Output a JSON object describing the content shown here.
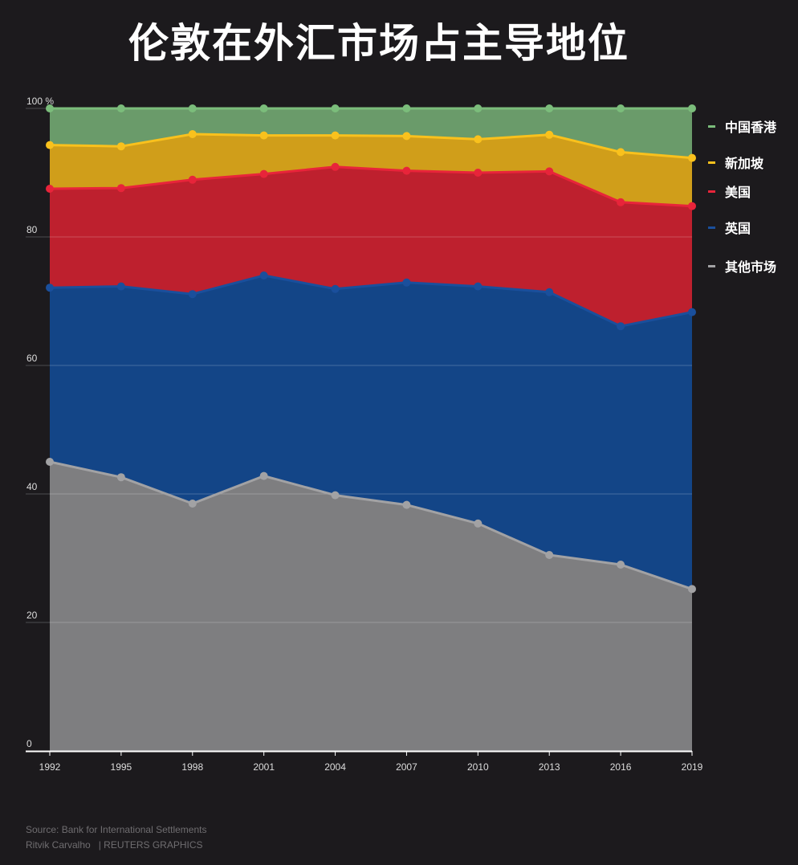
{
  "title": "伦敦在外汇市场占主导地位",
  "chart_data": {
    "type": "area",
    "stacked": true,
    "x": [
      1992,
      1995,
      1998,
      2001,
      2004,
      2007,
      2010,
      2013,
      2016,
      2019
    ],
    "ylim": [
      0,
      100
    ],
    "yticks": [
      0,
      20,
      40,
      60,
      80,
      100
    ],
    "yunit": "%",
    "grid": true,
    "legend_position": "right",
    "series": [
      {
        "name": "其他市场",
        "color": "#7e7e80",
        "line_color": "#a2a2a4",
        "cumulative": [
          45,
          42.6,
          38.5,
          42.8,
          39.8,
          38.3,
          35.4,
          30.5,
          29,
          25.2
        ]
      },
      {
        "name": "英国",
        "color": "#134587",
        "line_color": "#1a4f9c",
        "cumulative": [
          72.1,
          72.3,
          71.1,
          74,
          71.9,
          72.9,
          72.3,
          71.4,
          66.1,
          68.3
        ]
      },
      {
        "name": "美国",
        "color": "#be202e",
        "line_color": "#e8243a",
        "cumulative": [
          87.5,
          87.6,
          88.9,
          89.8,
          90.9,
          90.3,
          90,
          90.2,
          85.4,
          84.8
        ]
      },
      {
        "name": "新加坡",
        "color": "#d09e1a",
        "line_color": "#f9c11d",
        "cumulative": [
          94.3,
          94.1,
          96,
          95.8,
          95.8,
          95.7,
          95.2,
          95.9,
          93.2,
          92.3
        ]
      },
      {
        "name": "中国香港",
        "color": "#6a9b6a",
        "line_color": "#7bbd7b",
        "cumulative": [
          100,
          100,
          100,
          100,
          100,
          100,
          100,
          100,
          100,
          100
        ]
      }
    ],
    "legend_order": [
      "中国香港",
      "新加坡",
      "美国",
      "英国",
      "其他市场"
    ]
  },
  "footer": {
    "source": "Source: Bank for International Settlements",
    "author": "Ritvik Carvalho",
    "credit": "| REUTERS GRAPHICS"
  }
}
